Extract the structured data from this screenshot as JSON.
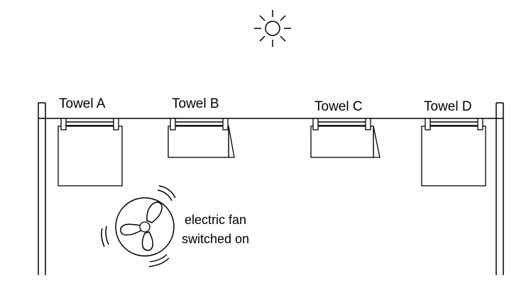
{
  "towels": [
    {
      "label": "Towel A",
      "state": "hanging flat"
    },
    {
      "label": "Towel B",
      "state": "fluttering"
    },
    {
      "label": "Towel C",
      "state": "fluttering"
    },
    {
      "label": "Towel D",
      "state": "hanging flat"
    }
  ],
  "fan": {
    "caption_line1": "electric fan",
    "caption_line2": "switched on"
  },
  "icons": [
    "sun-icon",
    "electric-fan-icon",
    "clothes-peg-icon"
  ]
}
